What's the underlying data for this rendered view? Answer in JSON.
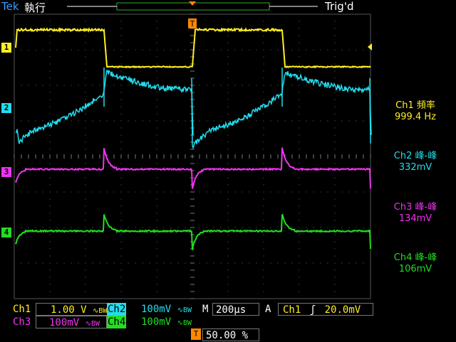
{
  "header": {
    "brand": "Tek",
    "status": "執行",
    "trigger_status": "Trig'd",
    "trigger_marker": "T"
  },
  "channels": [
    {
      "id": "1",
      "color": "#ffee22"
    },
    {
      "id": "2",
      "color": "#22ddee"
    },
    {
      "id": "3",
      "color": "#ee33ee"
    },
    {
      "id": "4",
      "color": "#22dd22"
    }
  ],
  "measurements": [
    {
      "label": "Ch1 頻率",
      "value": "999.4 Hz",
      "color": "#ffee22"
    },
    {
      "label": "Ch2 峰-峰",
      "value": "332mV",
      "color": "#22ddee"
    },
    {
      "label": "Ch3 峰-峰",
      "value": "134mV",
      "color": "#ee33ee"
    },
    {
      "label": "Ch4 峰-峰",
      "value": "106mV",
      "color": "#22dd22"
    }
  ],
  "settings": {
    "ch1_label": "Ch1",
    "ch1_scale": "1.00 V",
    "ch2_label": "Ch2",
    "ch2_scale": "100mV",
    "ch3_label": "Ch3",
    "ch3_scale": "100mV",
    "ch4_label": "Ch4",
    "ch4_scale": "100mV",
    "bw_symbol": "∿BW",
    "timebase_label": "M",
    "timebase_value": "200μs",
    "trigger_mode": "A",
    "trigger_source": "Ch1",
    "trigger_slope": "ʃ",
    "trigger_level": "20.0mV",
    "trigger_pos_marker": "T",
    "trigger_position": "50.00 %"
  }
}
